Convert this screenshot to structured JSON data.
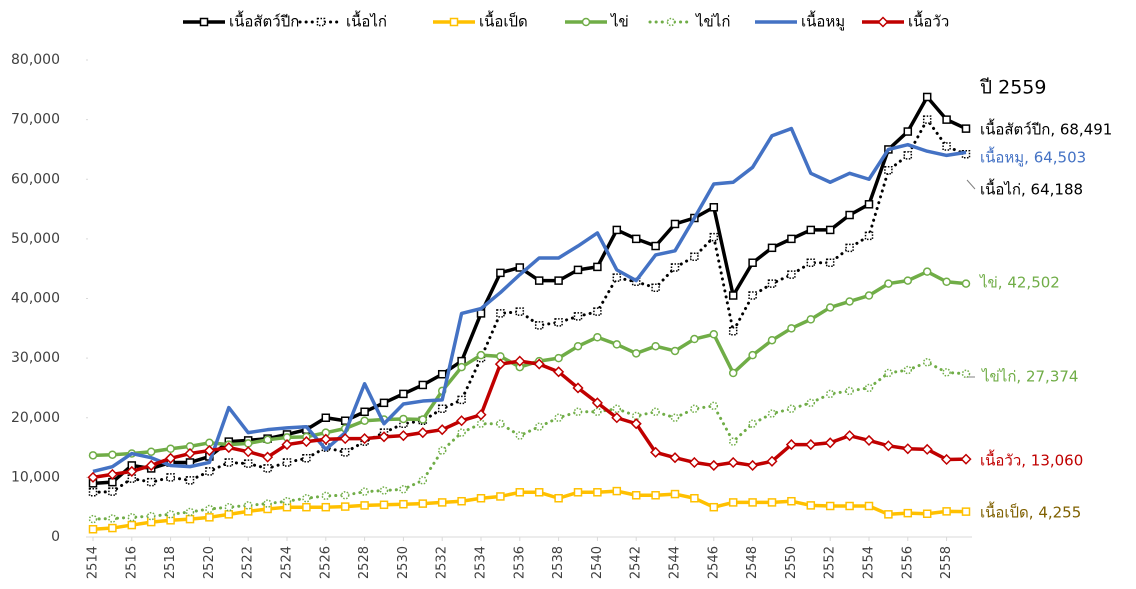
{
  "chart_data": {
    "type": "line",
    "annotation": "ปี 2559",
    "x": [
      2514,
      2515,
      2516,
      2517,
      2518,
      2519,
      2520,
      2521,
      2522,
      2523,
      2524,
      2525,
      2526,
      2527,
      2528,
      2529,
      2530,
      2531,
      2532,
      2533,
      2534,
      2535,
      2536,
      2537,
      2538,
      2539,
      2540,
      2541,
      2542,
      2543,
      2544,
      2545,
      2546,
      2547,
      2548,
      2549,
      2550,
      2551,
      2552,
      2553,
      2554,
      2555,
      2556,
      2557,
      2558,
      2559
    ],
    "xlim": [
      2514,
      2559
    ],
    "xticks": [
      2514,
      2516,
      2518,
      2520,
      2522,
      2524,
      2526,
      2528,
      2530,
      2532,
      2534,
      2536,
      2538,
      2540,
      2542,
      2544,
      2546,
      2548,
      2550,
      2552,
      2554,
      2556,
      2558
    ],
    "ylim": [
      0,
      80000
    ],
    "yticks": [
      0,
      {
        "value": 10000,
        "label": "10,000"
      },
      {
        "value": 20000,
        "label": "20,000"
      },
      {
        "value": 30000,
        "label": "30,000"
      },
      {
        "value": 40000,
        "label": "40,000"
      },
      {
        "value": 50000,
        "label": "50,000"
      },
      {
        "value": 60000,
        "label": "60,000"
      },
      {
        "value": 70000,
        "label": "70,000"
      },
      {
        "value": 80000,
        "label": "80,000"
      }
    ],
    "grid": false,
    "legend": "top",
    "series": [
      {
        "name": "เนื้อสัตว์ปีก",
        "color": "#000000",
        "marker": "square",
        "dashed": false,
        "end_label": "เนื้อสัตว์ปีก,  68,491",
        "label_color": "#000000",
        "values": [
          9000,
          9200,
          12000,
          11500,
          12500,
          12500,
          13500,
          16000,
          16200,
          16500,
          17200,
          18000,
          20000,
          19500,
          21000,
          22500,
          24000,
          25500,
          27300,
          29500,
          37500,
          44300,
          45200,
          43000,
          43000,
          44800,
          45300,
          51500,
          50000,
          48800,
          52500,
          53500,
          55300,
          40500,
          46000,
          48500,
          50000,
          51500,
          51500,
          54000,
          55800,
          65000,
          68000,
          73800,
          70000,
          68491
        ]
      },
      {
        "name": "เนื้อไก่",
        "color": "#000000",
        "marker": "square",
        "dashed": true,
        "end_label": "เนื้อไก่,  64,188",
        "label_color": "#000000",
        "values": [
          7500,
          7600,
          9800,
          9200,
          10000,
          9500,
          11000,
          12500,
          12300,
          11500,
          12500,
          13200,
          15000,
          14200,
          16000,
          17500,
          19000,
          19500,
          21500,
          23000,
          30000,
          37500,
          37800,
          35500,
          36000,
          37000,
          37800,
          43500,
          42800,
          41800,
          45200,
          47000,
          50300,
          34500,
          40500,
          42500,
          44000,
          46000,
          46000,
          48500,
          50500,
          61500,
          64000,
          70000,
          65500,
          64188
        ]
      },
      {
        "name": "เนื้อเป็ด",
        "color": "#ffc000",
        "marker": "square",
        "dashed": false,
        "end_label": "เนื้อเป็ด,  4,255",
        "label_color": "#7f6000",
        "values": [
          1300,
          1500,
          2000,
          2500,
          2800,
          3000,
          3300,
          3800,
          4300,
          4700,
          5000,
          5000,
          5000,
          5100,
          5300,
          5400,
          5500,
          5600,
          5800,
          6000,
          6500,
          6800,
          7500,
          7500,
          6500,
          7500,
          7500,
          7700,
          7000,
          7000,
          7200,
          6500,
          5000,
          5800,
          5800,
          5800,
          6000,
          5300,
          5200,
          5200,
          5200,
          3800,
          4000,
          3900,
          4300,
          4255
        ]
      },
      {
        "name": "ไข่",
        "color": "#70ad47",
        "marker": "circle",
        "dashed": false,
        "end_label": "ไข่,  42,502",
        "label_color": "#70ad47",
        "values": [
          13700,
          13800,
          14000,
          14300,
          14800,
          15200,
          15800,
          15500,
          15700,
          16300,
          16700,
          16800,
          17500,
          18200,
          19500,
          19700,
          19800,
          19700,
          24500,
          28500,
          30500,
          30300,
          28500,
          29500,
          30000,
          32000,
          33500,
          32300,
          30800,
          32000,
          31200,
          33200,
          34000,
          27500,
          30500,
          33000,
          35000,
          36500,
          38500,
          39500,
          40500,
          42500,
          43000,
          44500,
          42800,
          42502
        ]
      },
      {
        "name": "ไข่ไก่",
        "color": "#70ad47",
        "marker": "circle",
        "dashed": true,
        "end_label": "ไข่ไก่,  27,374",
        "label_color": "#70ad47",
        "values": [
          3000,
          3100,
          3300,
          3500,
          3800,
          4200,
          4700,
          5000,
          5300,
          5600,
          6000,
          6500,
          6900,
          7000,
          7600,
          7800,
          8000,
          9500,
          14500,
          17500,
          19000,
          19000,
          17000,
          18500,
          20000,
          21000,
          21000,
          21500,
          20300,
          21000,
          20000,
          21500,
          22000,
          16000,
          19000,
          20700,
          21500,
          22500,
          24000,
          24500,
          25000,
          27500,
          28000,
          29300,
          27600,
          27374
        ]
      },
      {
        "name": "เนื้อหมู",
        "color": "#4472c4",
        "marker": "none",
        "dashed": false,
        "end_label": "เนื้อหมู,  64,503",
        "label_color": "#4472c4",
        "values": [
          11000,
          11800,
          14000,
          13300,
          12000,
          11800,
          12500,
          21700,
          17500,
          18000,
          18300,
          18500,
          14700,
          17500,
          25700,
          19000,
          22300,
          22800,
          23000,
          37500,
          38300,
          41000,
          44000,
          46800,
          46800,
          48800,
          51000,
          44800,
          43000,
          47300,
          48000,
          53500,
          59200,
          59500,
          62000,
          67300,
          68500,
          61000,
          59500,
          61000,
          60000,
          65000,
          65800,
          64700,
          64000,
          64503
        ]
      },
      {
        "name": "เนื้อวัว",
        "color": "#c00000",
        "marker": "diamond",
        "dashed": false,
        "end_label": "เนื้อวัว,  13,060",
        "label_color": "#c00000",
        "values": [
          10000,
          10500,
          11000,
          12000,
          13200,
          14000,
          14500,
          15000,
          14300,
          13400,
          15500,
          16000,
          16400,
          16500,
          16500,
          16800,
          17000,
          17500,
          18000,
          19500,
          20500,
          29000,
          29500,
          29000,
          27700,
          25000,
          22500,
          20000,
          19000,
          14200,
          13300,
          12500,
          12000,
          12500,
          12000,
          12700,
          15500,
          15500,
          15800,
          17000,
          16200,
          15300,
          14800,
          14700,
          13000,
          13060
        ]
      }
    ]
  }
}
